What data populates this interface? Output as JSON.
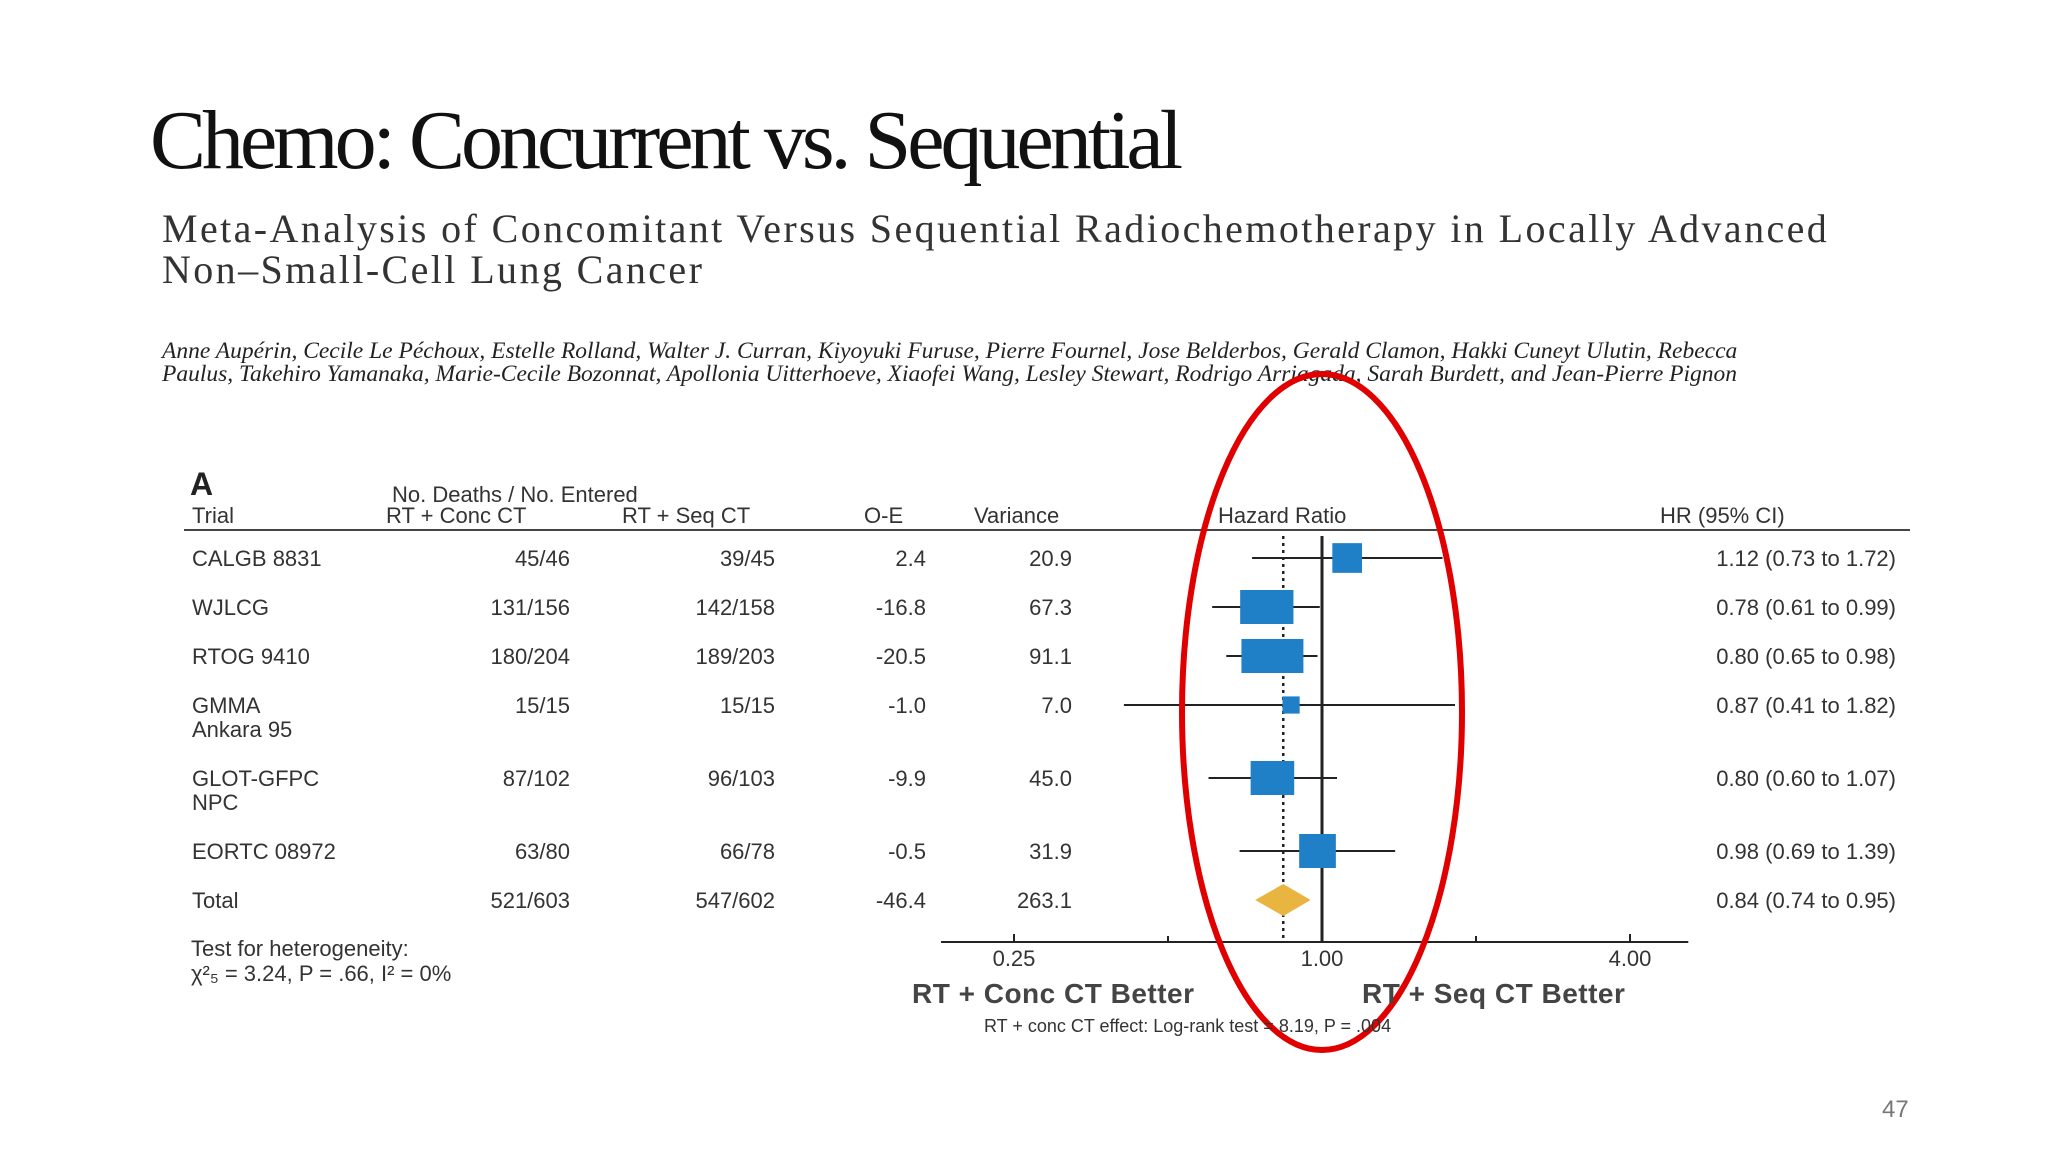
{
  "slide": {
    "title": "Chemo: Concurrent vs. Sequential",
    "paper_title": "Meta-Analysis of Concomitant Versus Sequential Radiochemotherapy in Locally Advanced Non–Small-Cell Lung Cancer",
    "authors": "Anne Aupérin, Cecile Le Péchoux, Estelle Rolland, Walter J. Curran, Kiyoyuki Furuse, Pierre Fournel, Jose Belderbos, Gerald Clamon, Hakki Cuneyt Ulutin, Rebecca Paulus, Takehiro Yamanaka, Marie-Cecile Bozonnat, Apollonia Uitterhoeve, Xiaofei Wang, Lesley Stewart, Rodrigo Arriagada, Sarah Burdett, and Jean-Pierre Pignon",
    "slide_number": "47",
    "annotation_color": "#e00000"
  },
  "table": {
    "figure_letter": "A",
    "headers": {
      "group": "No. Deaths / No. Entered",
      "trial": "Trial",
      "conc": "RT + Conc CT",
      "seq": "RT + Seq CT",
      "oe": "O-E",
      "variance": "Variance",
      "hr_plot": "Hazard Ratio",
      "hr_ci": "HR (95% CI)"
    },
    "rows": [
      {
        "trial": "CALGB 8831",
        "trial2": "",
        "conc": "45/46",
        "seq": "39/45",
        "oe": "2.4",
        "variance": "20.9",
        "hr_text": "1.12 (0.73 to 1.72)"
      },
      {
        "trial": "WJLCG",
        "trial2": "",
        "conc": "131/156",
        "seq": "142/158",
        "oe": "-16.8",
        "variance": "67.3",
        "hr_text": "0.78 (0.61 to 0.99)"
      },
      {
        "trial": "RTOG 9410",
        "trial2": "",
        "conc": "180/204",
        "seq": "189/203",
        "oe": "-20.5",
        "variance": "91.1",
        "hr_text": "0.80 (0.65 to 0.98)"
      },
      {
        "trial": "GMMA",
        "trial2": "Ankara 95",
        "conc": "15/15",
        "seq": "15/15",
        "oe": "-1.0",
        "variance": "7.0",
        "hr_text": "0.87 (0.41 to 1.82)"
      },
      {
        "trial": "GLOT-GFPC",
        "trial2": "NPC",
        "conc": "87/102",
        "seq": "96/103",
        "oe": "-9.9",
        "variance": "45.0",
        "hr_text": "0.80 (0.60 to 1.07)"
      },
      {
        "trial": "EORTC 08972",
        "trial2": "",
        "conc": "63/80",
        "seq": "66/78",
        "oe": "-0.5",
        "variance": "31.9",
        "hr_text": "0.98 (0.69 to 1.39)"
      },
      {
        "trial": "Total",
        "trial2": "",
        "conc": "521/603",
        "seq": "547/602",
        "oe": "-46.4",
        "variance": "263.1",
        "hr_text": "0.84 (0.74 to 0.95)"
      }
    ],
    "heterogeneity_line1": "Test for heterogeneity:",
    "heterogeneity_line2": "χ²₅ = 3.24, P = .66, I² = 0%",
    "favors_left": "RT + Conc CT Better",
    "favors_right": "RT + Seq CT Better",
    "footnote": "RT + conc CT effect: Log-rank test = 8.19, P = .004"
  },
  "chart_data": {
    "type": "forest",
    "title": "",
    "xlabel": "Hazard Ratio",
    "x_scale": "log",
    "x_ticks": [
      0.25,
      1.0,
      4.0
    ],
    "x_tick_labels": [
      "0.25",
      "1.00",
      "4.00"
    ],
    "reference_line": 1.0,
    "pooled_line": 0.84,
    "marker_color": "#1f80c8",
    "pooled_color": "#e8b640",
    "studies": [
      {
        "name": "CALGB 8831",
        "hr": 1.12,
        "ci_low": 0.73,
        "ci_high": 1.72,
        "variance": 20.9
      },
      {
        "name": "WJLCG",
        "hr": 0.78,
        "ci_low": 0.61,
        "ci_high": 0.99,
        "variance": 67.3
      },
      {
        "name": "RTOG 9410",
        "hr": 0.8,
        "ci_low": 0.65,
        "ci_high": 0.98,
        "variance": 91.1
      },
      {
        "name": "GMMA Ankara 95",
        "hr": 0.87,
        "ci_low": 0.41,
        "ci_high": 1.82,
        "variance": 7.0
      },
      {
        "name": "GLOT-GFPC NPC",
        "hr": 0.8,
        "ci_low": 0.6,
        "ci_high": 1.07,
        "variance": 45.0
      },
      {
        "name": "EORTC 08972",
        "hr": 0.98,
        "ci_low": 0.69,
        "ci_high": 1.39,
        "variance": 31.9
      }
    ],
    "pooled": {
      "name": "Total",
      "hr": 0.84,
      "ci_low": 0.74,
      "ci_high": 0.95
    }
  }
}
